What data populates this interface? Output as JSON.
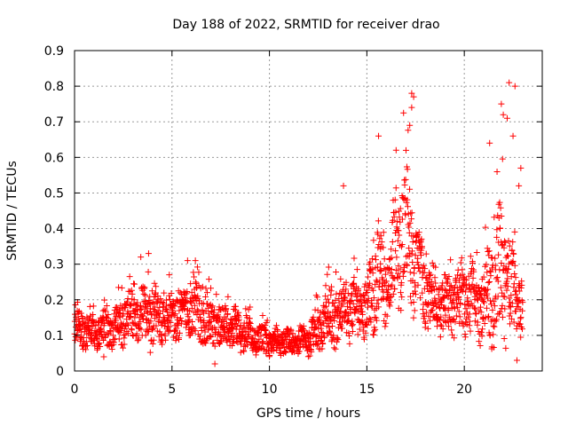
{
  "chart_data": {
    "type": "scatter",
    "title": "Day 188 of 2022, SRMTID for receiver drao",
    "xlabel": "GPS time / hours",
    "ylabel": "SRMTID / TECUs",
    "xlim": [
      0,
      24
    ],
    "ylim": [
      0,
      0.9
    ],
    "xticks": [
      0,
      5,
      10,
      15,
      20
    ],
    "xtick_labels": [
      "0",
      "5",
      "10",
      "15",
      "20"
    ],
    "yticks": [
      0,
      0.1,
      0.2,
      0.3,
      0.4,
      0.5,
      0.6,
      0.7,
      0.8,
      0.9
    ],
    "ytick_labels": [
      "0",
      "0.1",
      "0.2",
      "0.3",
      "0.4",
      "0.5",
      "0.6",
      "0.7",
      "0.8",
      "0.9"
    ],
    "grid": true,
    "marker": "+",
    "color": "#ff0000",
    "series": [
      {
        "name": "SRMTID",
        "envelope": {
          "x": [
            0,
            1,
            2,
            3,
            4,
            5,
            6,
            7,
            8,
            9,
            10,
            11,
            12,
            13,
            14,
            15,
            15.5,
            16,
            16.5,
            17,
            17.5,
            18,
            19,
            20,
            21,
            21.5,
            22,
            22.5,
            23
          ],
          "median": [
            0.12,
            0.11,
            0.12,
            0.16,
            0.14,
            0.15,
            0.17,
            0.13,
            0.12,
            0.1,
            0.08,
            0.08,
            0.09,
            0.15,
            0.17,
            0.16,
            0.3,
            0.22,
            0.33,
            0.4,
            0.3,
            0.22,
            0.18,
            0.2,
            0.17,
            0.25,
            0.26,
            0.22,
            0.18
          ],
          "spread": [
            0.06,
            0.05,
            0.06,
            0.09,
            0.09,
            0.07,
            0.09,
            0.07,
            0.07,
            0.05,
            0.04,
            0.04,
            0.05,
            0.09,
            0.1,
            0.09,
            0.18,
            0.12,
            0.17,
            0.22,
            0.15,
            0.1,
            0.09,
            0.12,
            0.11,
            0.2,
            0.22,
            0.15,
            0.09
          ]
        },
        "points_per_hour": 90,
        "notable_points": [
          {
            "x": 13.8,
            "y": 0.52
          },
          {
            "x": 15.6,
            "y": 0.66
          },
          {
            "x": 16.5,
            "y": 0.62
          },
          {
            "x": 17.3,
            "y": 0.78
          },
          {
            "x": 17.4,
            "y": 0.77
          },
          {
            "x": 17.3,
            "y": 0.74
          },
          {
            "x": 17.2,
            "y": 0.69
          },
          {
            "x": 21.3,
            "y": 0.64
          },
          {
            "x": 21.9,
            "y": 0.75
          },
          {
            "x": 22.0,
            "y": 0.72
          },
          {
            "x": 22.2,
            "y": 0.71
          },
          {
            "x": 22.3,
            "y": 0.81
          },
          {
            "x": 22.6,
            "y": 0.8
          },
          {
            "x": 22.5,
            "y": 0.66
          },
          {
            "x": 22.8,
            "y": 0.52
          },
          {
            "x": 22.9,
            "y": 0.57
          },
          {
            "x": 22.7,
            "y": 0.03
          },
          {
            "x": 7.2,
            "y": 0.02
          },
          {
            "x": 1.5,
            "y": 0.04
          },
          {
            "x": 3.4,
            "y": 0.32
          },
          {
            "x": 3.8,
            "y": 0.33
          },
          {
            "x": 5.8,
            "y": 0.31
          },
          {
            "x": 6.2,
            "y": 0.31
          }
        ]
      }
    ]
  }
}
